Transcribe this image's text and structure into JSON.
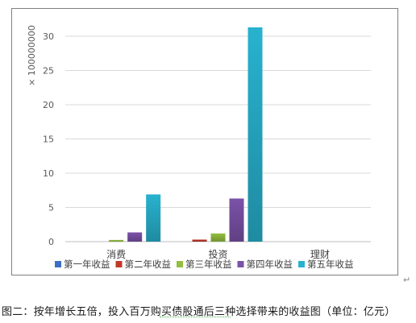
{
  "chart_data": {
    "type": "bar",
    "categories": [
      "消费",
      "投资",
      "理财"
    ],
    "axis_multiplier_label": "× 100000000",
    "ylim": [
      0,
      32
    ],
    "yticks": [
      0,
      5,
      10,
      15,
      20,
      25,
      30
    ],
    "grid": true,
    "legend_position": "bottom",
    "series": [
      {
        "name": "第一年收益",
        "color": "#3a6fc4",
        "values": [
          0,
          0,
          0
        ]
      },
      {
        "name": "第二年收益",
        "color": "#c0392b",
        "values": [
          0,
          0.3,
          0
        ]
      },
      {
        "name": "第三年收益",
        "color": "#93be3f",
        "values": [
          0.25,
          1.2,
          0
        ]
      },
      {
        "name": "第四年收益",
        "color": "#7b52a8",
        "values": [
          1.35,
          6.3,
          0
        ]
      },
      {
        "name": "第五年收益",
        "color": "#28b2cf",
        "values": [
          6.9,
          31.3,
          0
        ]
      }
    ]
  },
  "caption": "图二：按年增长五倍，投入百万购买债股通后三种选择带来的收益图（单位：亿元）",
  "paragraph_mark": "↵"
}
